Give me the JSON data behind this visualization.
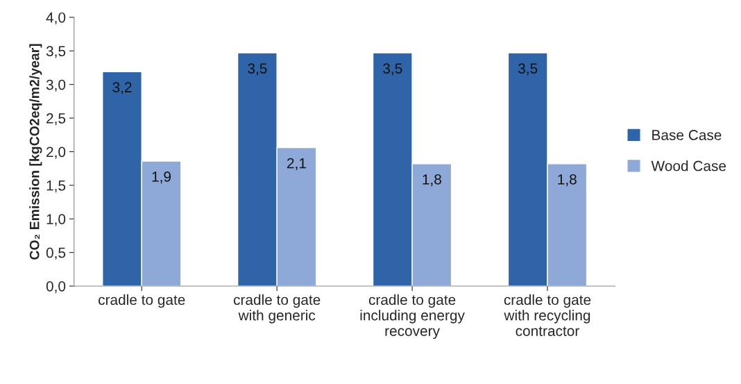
{
  "chart_data": {
    "type": "bar",
    "ylabel": "CO₂ Emission [kgCO2eq/m2/year]",
    "categories": [
      "cradle to gate",
      "cradle to gate\nwith generic",
      "cradle to gate\nincluding energy\nrecovery",
      "cradle to gate\nwith recycling\ncontractor"
    ],
    "series": [
      {
        "name": "Base Case",
        "color": "#2f64a9",
        "values": [
          3.19,
          3.47,
          3.47,
          3.47
        ],
        "value_labels": [
          "3,2",
          "3,5",
          "3,5",
          "3,5"
        ]
      },
      {
        "name": "Wood Case",
        "color": "#8ea9d8",
        "values": [
          1.86,
          2.06,
          1.82,
          1.82
        ],
        "value_labels": [
          "1,9",
          "2,1",
          "1,8",
          "1,8"
        ]
      }
    ],
    "ylim": [
      0,
      4
    ],
    "yticks": [
      {
        "value": 0,
        "label": "0,0"
      },
      {
        "value": 0.5,
        "label": "0,5"
      },
      {
        "value": 1,
        "label": "1,0"
      },
      {
        "value": 1.5,
        "label": "1,5"
      },
      {
        "value": 2,
        "label": "2,0"
      },
      {
        "value": 2.5,
        "label": "2,5"
      },
      {
        "value": 3,
        "label": "3,0"
      },
      {
        "value": 3.5,
        "label": "3,5"
      },
      {
        "value": 4,
        "label": "4,0"
      }
    ],
    "legend": "right",
    "grid": false
  }
}
